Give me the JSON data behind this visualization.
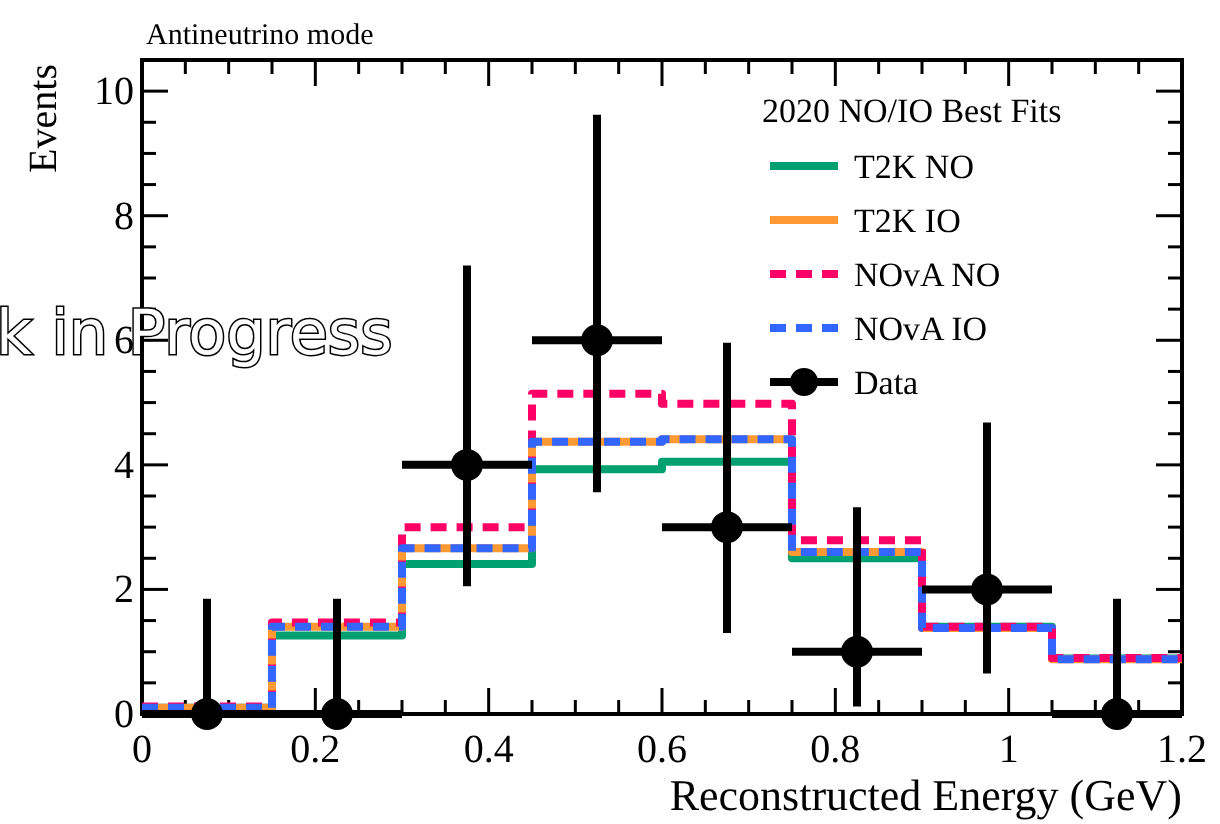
{
  "chart_data": {
    "type": "step",
    "title": "Antineutrino mode",
    "xlabel": "Reconstructed Energy (GeV)",
    "ylabel": "Events",
    "legend_title": "2020 NO/IO Best Fits",
    "legend": "top right",
    "annotations": [
      "k in Progress"
    ],
    "xlim": [
      0,
      1.2
    ],
    "ylim": [
      0,
      10.5
    ],
    "xticks": [
      0,
      {
        "value": 0.05,
        "label": null
      },
      {
        "value": 0.1,
        "label": null
      },
      {
        "value": 0.15,
        "label": null
      },
      0.2,
      {
        "value": 0.25,
        "label": null
      },
      {
        "value": 0.3,
        "label": null
      },
      {
        "value": 0.35,
        "label": null
      },
      0.4,
      {
        "value": 0.45,
        "label": null
      },
      {
        "value": 0.5,
        "label": null
      },
      {
        "value": 0.55,
        "label": null
      },
      0.6,
      {
        "value": 0.65,
        "label": null
      },
      {
        "value": 0.7,
        "label": null
      },
      {
        "value": 0.75,
        "label": null
      },
      0.8,
      {
        "value": 0.85,
        "label": null
      },
      {
        "value": 0.9,
        "label": null
      },
      {
        "value": 0.95,
        "label": null
      },
      1,
      {
        "value": 1.05,
        "label": null
      },
      {
        "value": 1.1,
        "label": null
      },
      {
        "value": 1.15,
        "label": null
      },
      1.2
    ],
    "yticks": [
      0,
      {
        "value": 0.5,
        "label": null
      },
      {
        "value": 1,
        "label": null
      },
      {
        "value": 1.5,
        "label": null
      },
      2,
      {
        "value": 2.5,
        "label": null
      },
      {
        "value": 3,
        "label": null
      },
      {
        "value": 3.5,
        "label": null
      },
      4,
      {
        "value": 4.5,
        "label": null
      },
      {
        "value": 5,
        "label": null
      },
      {
        "value": 5.5,
        "label": null
      },
      6,
      {
        "value": 6.5,
        "label": null
      },
      {
        "value": 7,
        "label": null
      },
      {
        "value": 7.5,
        "label": null
      },
      8,
      {
        "value": 8.5,
        "label": null
      },
      {
        "value": 9,
        "label": null
      },
      {
        "value": 9.5,
        "label": null
      },
      10
    ],
    "series": [
      {
        "name": "T2K NO",
        "color": "#00a070",
        "line_style": "solid",
        "x": [
          0,
          0.15,
          0.3,
          0.45,
          0.6,
          0.75,
          0.9,
          1.05,
          1.2
        ],
        "values": [
          0.1,
          1.26,
          2.41,
          3.93,
          4.05,
          2.5,
          1.4,
          0.89,
          0.89
        ]
      },
      {
        "name": "T2K IO",
        "color": "#ff9933",
        "line_style": "solid",
        "x": [
          0,
          0.15,
          0.3,
          0.45,
          0.6,
          0.75,
          0.9,
          1.05,
          1.2
        ],
        "values": [
          0.1,
          1.4,
          2.66,
          4.37,
          4.41,
          2.6,
          1.38,
          0.88,
          0.88
        ]
      },
      {
        "name": "NOvA NO",
        "color": "#ff0066",
        "line_style": "dashed",
        "x": [
          0,
          0.15,
          0.3,
          0.45,
          0.6,
          0.75,
          0.9,
          1.05,
          1.2
        ],
        "values": [
          0.12,
          1.47,
          3.0,
          5.14,
          4.98,
          2.79,
          1.4,
          0.9,
          0.9
        ]
      },
      {
        "name": "NOvA IO",
        "color": "#3366ff",
        "line_style": "dashed",
        "x": [
          0,
          0.15,
          0.3,
          0.45,
          0.6,
          0.75,
          0.9,
          1.05,
          1.2
        ],
        "values": [
          0.1,
          1.4,
          2.66,
          4.37,
          4.41,
          2.6,
          1.38,
          0.88,
          0.88
        ]
      },
      {
        "name": "Data",
        "type": "scatter",
        "marker": "circle",
        "color": "#000000",
        "x": [
          0.075,
          0.225,
          0.375,
          0.525,
          0.675,
          0.825,
          0.975,
          1.125
        ],
        "values": [
          0,
          0,
          4,
          6,
          3,
          1,
          2,
          0
        ],
        "errors": [
          [
            0,
            1.85
          ],
          [
            0,
            1.85
          ],
          [
            2.05,
            7.2
          ],
          [
            3.56,
            9.62
          ],
          [
            1.3,
            5.96
          ],
          [
            0.12,
            3.32
          ],
          [
            0.65,
            4.68
          ],
          [
            0,
            1.85
          ]
        ],
        "xerrors": [
          0.075,
          0.075,
          0.075,
          0.075,
          0.075,
          0.075,
          0.075,
          0.075
        ]
      }
    ]
  }
}
